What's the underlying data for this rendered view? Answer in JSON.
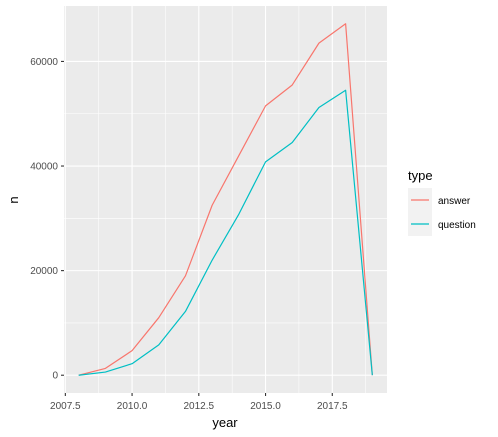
{
  "chart_data": {
    "type": "line",
    "xlabel": "year",
    "ylabel": "n",
    "xlim": [
      2007.45,
      2019.55
    ],
    "ylim": [
      -3400,
      70600
    ],
    "x_ticks": [
      2007.5,
      2010.0,
      2012.5,
      2015.0,
      2017.5
    ],
    "x_tick_labels": [
      "2007.5",
      "2010.0",
      "2012.5",
      "2015.0",
      "2017.5"
    ],
    "y_ticks": [
      0,
      20000,
      40000,
      60000
    ],
    "y_tick_labels": [
      "0",
      "20000",
      "40000",
      "60000"
    ],
    "x_minor_ticks": [
      2008.75,
      2011.25,
      2013.75,
      2016.25,
      2018.75
    ],
    "y_minor_ticks": [
      10000,
      30000,
      50000
    ],
    "grid": true,
    "legend": {
      "title": "type",
      "position": "right"
    },
    "series": [
      {
        "name": "answer",
        "color": "#F8766D",
        "x": [
          2008,
          2009,
          2010,
          2011,
          2012,
          2013,
          2014,
          2015,
          2016,
          2017,
          2018,
          2019
        ],
        "values": [
          0,
          1300,
          4700,
          11000,
          19000,
          32500,
          42000,
          51500,
          55500,
          63500,
          67200,
          0
        ]
      },
      {
        "name": "question",
        "color": "#00BFC4",
        "x": [
          2008,
          2009,
          2010,
          2011,
          2012,
          2013,
          2014,
          2015,
          2016,
          2017,
          2018,
          2019
        ],
        "values": [
          0,
          600,
          2200,
          5800,
          12200,
          22000,
          30800,
          40800,
          44500,
          51200,
          54500,
          0
        ]
      }
    ]
  }
}
